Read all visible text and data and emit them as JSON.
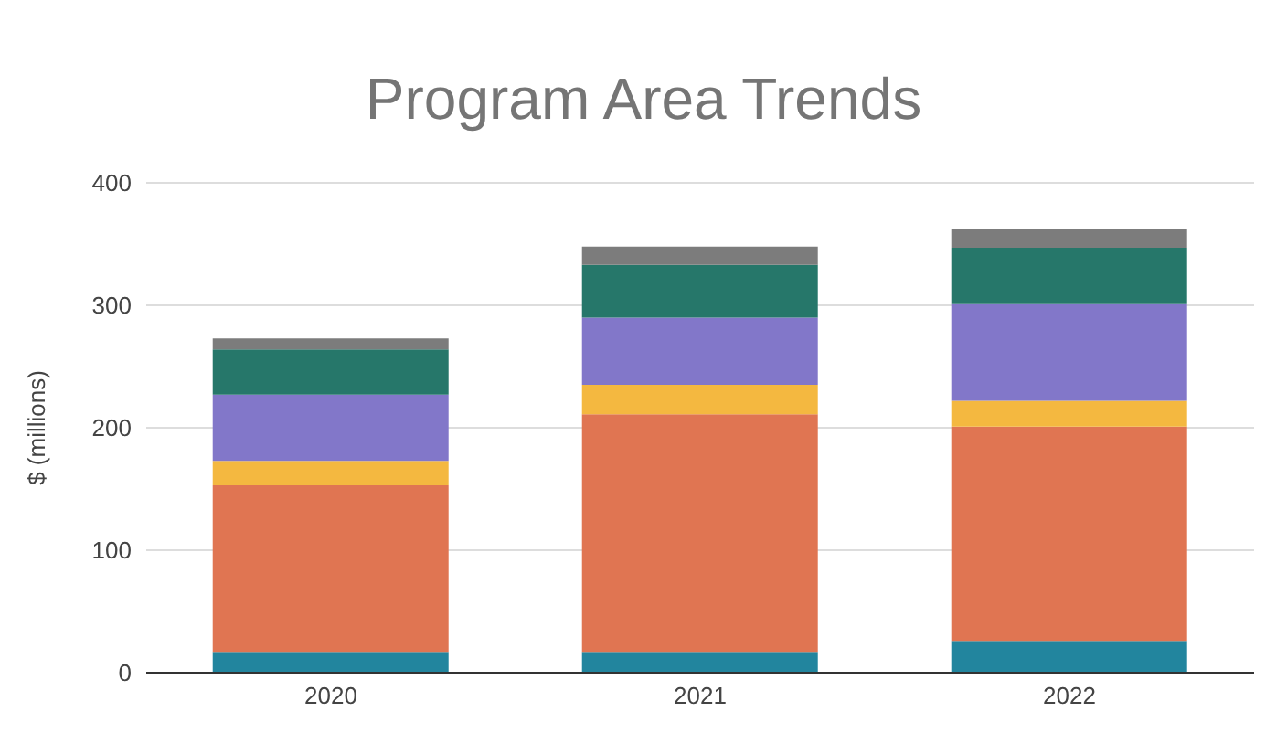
{
  "chart_data": {
    "type": "bar",
    "title": "Program Area Trends",
    "ylabel": "$ (millions)",
    "categories": [
      "2020",
      "2021",
      "2022"
    ],
    "stacked": true,
    "series": [
      {
        "color": "#22859e",
        "values": [
          17,
          17,
          26
        ]
      },
      {
        "color": "#e07552",
        "values": [
          136,
          194,
          175
        ]
      },
      {
        "color": "#f4b840",
        "values": [
          20,
          24,
          21
        ]
      },
      {
        "color": "#8277c9",
        "values": [
          54,
          55,
          79
        ]
      },
      {
        "color": "#26776a",
        "values": [
          37,
          43,
          46
        ]
      },
      {
        "color": "#7c7c7c",
        "values": [
          9,
          15,
          15
        ]
      }
    ],
    "ylim": [
      0,
      400
    ],
    "yticks": [
      0,
      100,
      200,
      300,
      400
    ],
    "grid": "y"
  }
}
